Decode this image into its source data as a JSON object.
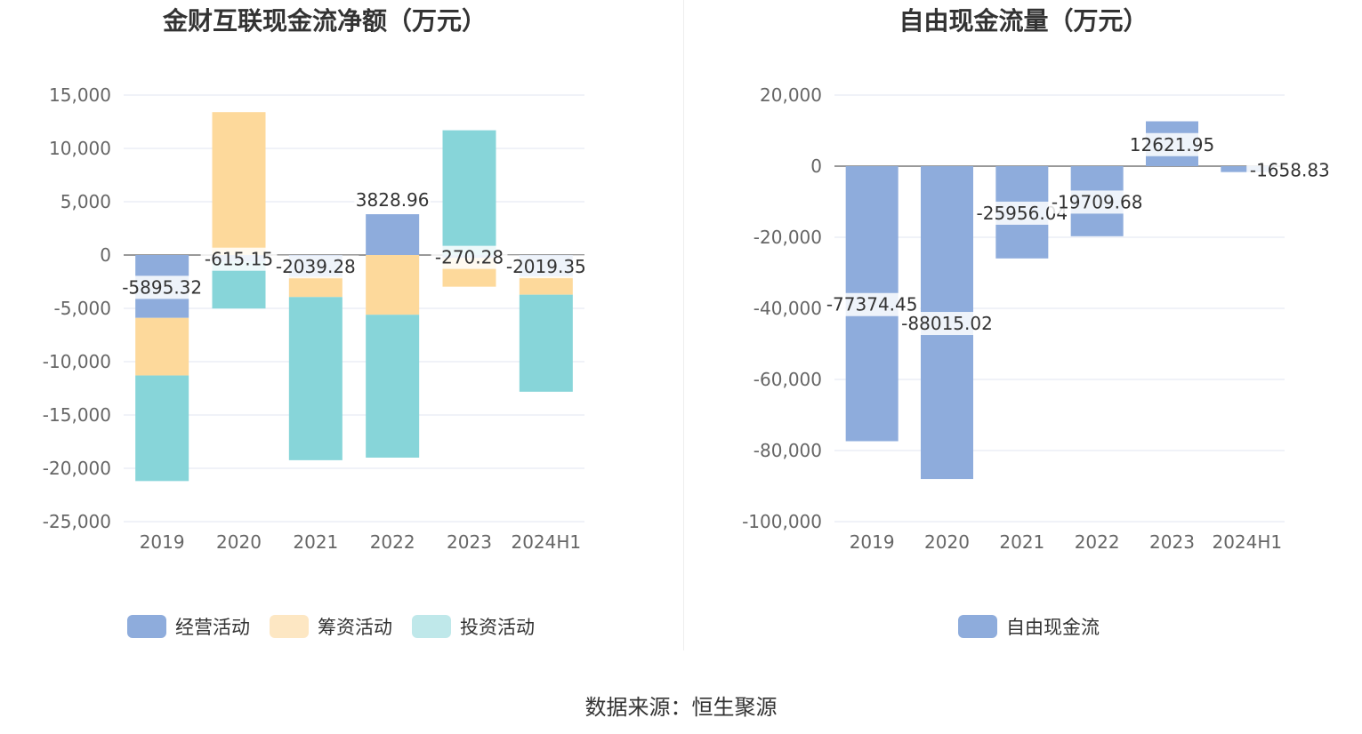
{
  "source": "数据来源：恒生聚源",
  "chart_data": [
    {
      "type": "bar",
      "stacked": true,
      "title": "金财互联现金流净额（万元）",
      "categories": [
        "2019",
        "2020",
        "2021",
        "2022",
        "2023",
        "2024H1"
      ],
      "ylim": [
        -25000,
        15000
      ],
      "yticks": [
        15000,
        10000,
        5000,
        0,
        -5000,
        -10000,
        -15000,
        -20000,
        -25000
      ],
      "ytick_labels": [
        "15,000",
        "10,000",
        "5,000",
        "0",
        "-5,000",
        "-10,000",
        "-15,000",
        "-20,000",
        "-25,000"
      ],
      "grid": true,
      "legend_position": "bottom",
      "series": [
        {
          "name": "经营活动",
          "color": "#8eacdc",
          "values": [
            -5895.32,
            -615.15,
            -2039.28,
            3828.96,
            -270.28,
            -2019.35
          ],
          "labels": [
            "-5895.32",
            "-615.15",
            "-2039.28",
            "3828.96",
            "-270.28",
            "-2019.35"
          ]
        },
        {
          "name": "筹资活动",
          "color": "#fdd99b",
          "values": [
            -5400,
            13400,
            -1900,
            -5600,
            -2700,
            -1700
          ]
        },
        {
          "name": "投资活动",
          "color": "#87d5d9",
          "values": [
            -9900,
            -4400,
            -15300,
            -13400,
            11700,
            -9100
          ]
        }
      ],
      "legend_colors": {
        "经营活动": "#8eacdc",
        "筹资活动": "#fde7c3",
        "投资活动": "#bfe8ea"
      }
    },
    {
      "type": "bar",
      "title": "自由现金流量（万元）",
      "categories": [
        "2019",
        "2020",
        "2021",
        "2022",
        "2023",
        "2024H1"
      ],
      "ylim": [
        -100000,
        20000
      ],
      "yticks": [
        20000,
        0,
        -20000,
        -40000,
        -60000,
        -80000,
        -100000
      ],
      "ytick_labels": [
        "20,000",
        "0",
        "-20,000",
        "-40,000",
        "-60,000",
        "-80,000",
        "-100,000"
      ],
      "grid": true,
      "legend_position": "bottom",
      "series": [
        {
          "name": "自由现金流",
          "color": "#8eacdc",
          "values": [
            -77374.45,
            -88015.02,
            -25956.04,
            -19709.68,
            12621.95,
            -1658.83
          ],
          "labels": [
            "-77374.45",
            "-88015.02",
            "-25956.04",
            "-19709.68",
            "12621.95",
            "-1658.83"
          ]
        }
      ]
    }
  ]
}
